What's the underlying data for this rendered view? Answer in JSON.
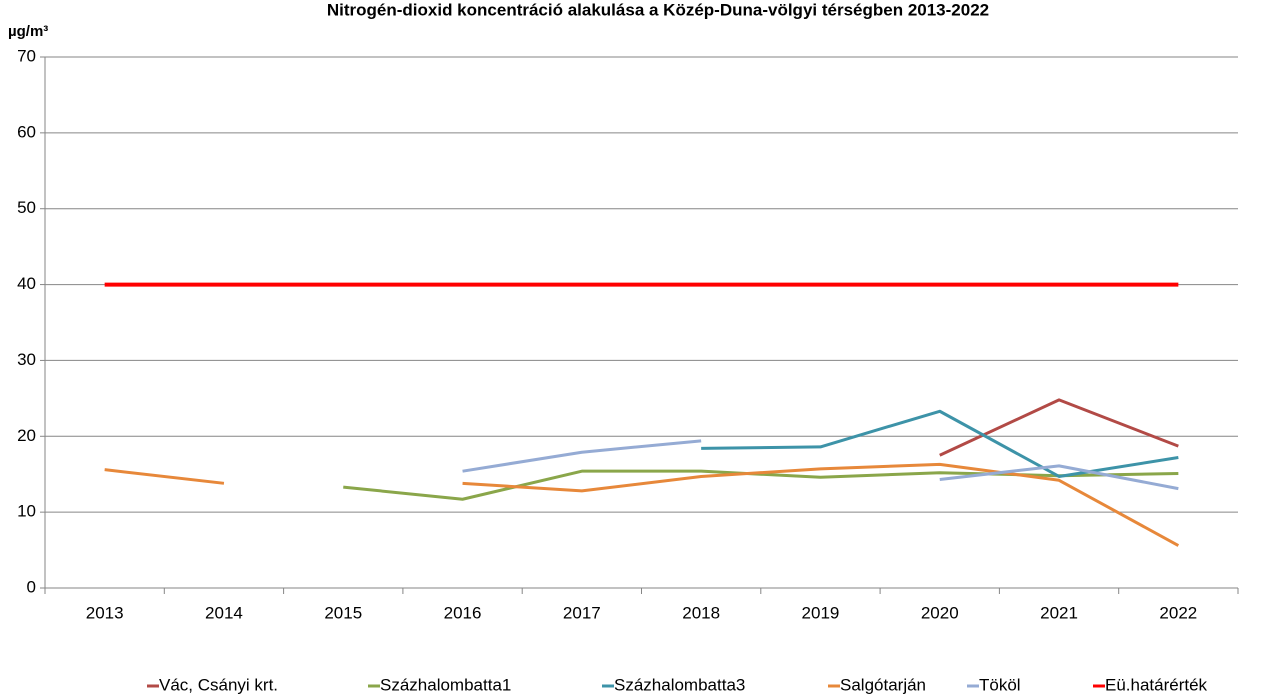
{
  "chart_data": {
    "type": "line",
    "title": "Nitrogén-dioxid koncentráció alakulása a Közép-Duna-völgyi térségben 2013-2022",
    "y_axis_label": "µg/m³",
    "categories": [
      "2013",
      "2014",
      "2015",
      "2016",
      "2017",
      "2018",
      "2019",
      "2020",
      "2021",
      "2022"
    ],
    "series": [
      {
        "name": "Vác, Csányi krt.",
        "color": "#b24a46",
        "values": [
          null,
          null,
          null,
          null,
          null,
          null,
          null,
          17.5,
          24.8,
          18.7
        ]
      },
      {
        "name": "Százhalombatta1",
        "color": "#8aa64a",
        "values": [
          null,
          null,
          13.3,
          11.7,
          15.4,
          15.4,
          14.6,
          15.2,
          14.8,
          15.1
        ]
      },
      {
        "name": "Százhalombatta3",
        "color": "#3d93a8",
        "values": [
          null,
          null,
          null,
          null,
          null,
          18.4,
          18.6,
          23.3,
          14.7,
          17.2
        ]
      },
      {
        "name": "Salgótarján",
        "color": "#e7883a",
        "values": [
          15.6,
          13.8,
          null,
          13.8,
          12.8,
          14.7,
          15.7,
          16.3,
          14.2,
          5.6
        ]
      },
      {
        "name": "Tököl",
        "color": "#95abd4",
        "values": [
          null,
          null,
          null,
          15.4,
          17.9,
          19.4,
          null,
          14.3,
          16.1,
          13.1
        ]
      },
      {
        "name": "Eü.határérték",
        "color": "#ff0000",
        "values": [
          40,
          40,
          40,
          40,
          40,
          40,
          40,
          40,
          40,
          40
        ]
      }
    ],
    "ylim": [
      0,
      70
    ],
    "yticks": [
      0,
      10,
      20,
      30,
      40,
      50,
      60,
      70
    ],
    "grid": true,
    "legend": "bottom"
  }
}
